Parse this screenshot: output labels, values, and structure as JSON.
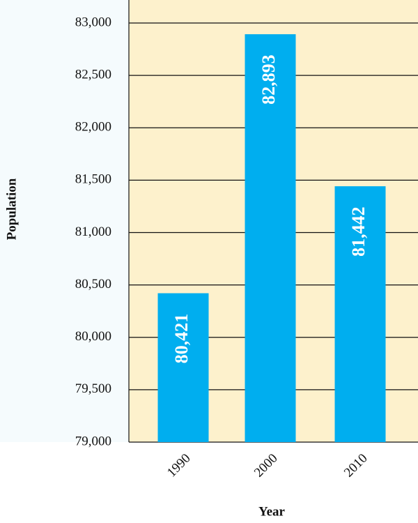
{
  "chart_data": {
    "type": "bar",
    "x_label": "Year",
    "y_label": "Population",
    "categories": [
      "1990",
      "2000",
      "2010"
    ],
    "values": [
      80421,
      82893,
      81442
    ],
    "value_labels": [
      "80,421",
      "82,893",
      "81,442"
    ],
    "color": "#00aeef",
    "ylim": [
      79000,
      83000
    ],
    "yticks": [
      {
        "value": 79000,
        "label": "79,000"
      },
      {
        "value": 79500,
        "label": "79,500"
      },
      {
        "value": 80000,
        "label": "80,000"
      },
      {
        "value": 80500,
        "label": "80,500"
      },
      {
        "value": 81000,
        "label": "81,000"
      },
      {
        "value": 81500,
        "label": "81,500"
      },
      {
        "value": 82000,
        "label": "82,000"
      },
      {
        "value": 82500,
        "label": "82,500"
      },
      {
        "value": 83000,
        "label": "83,000"
      }
    ],
    "grid": true
  }
}
